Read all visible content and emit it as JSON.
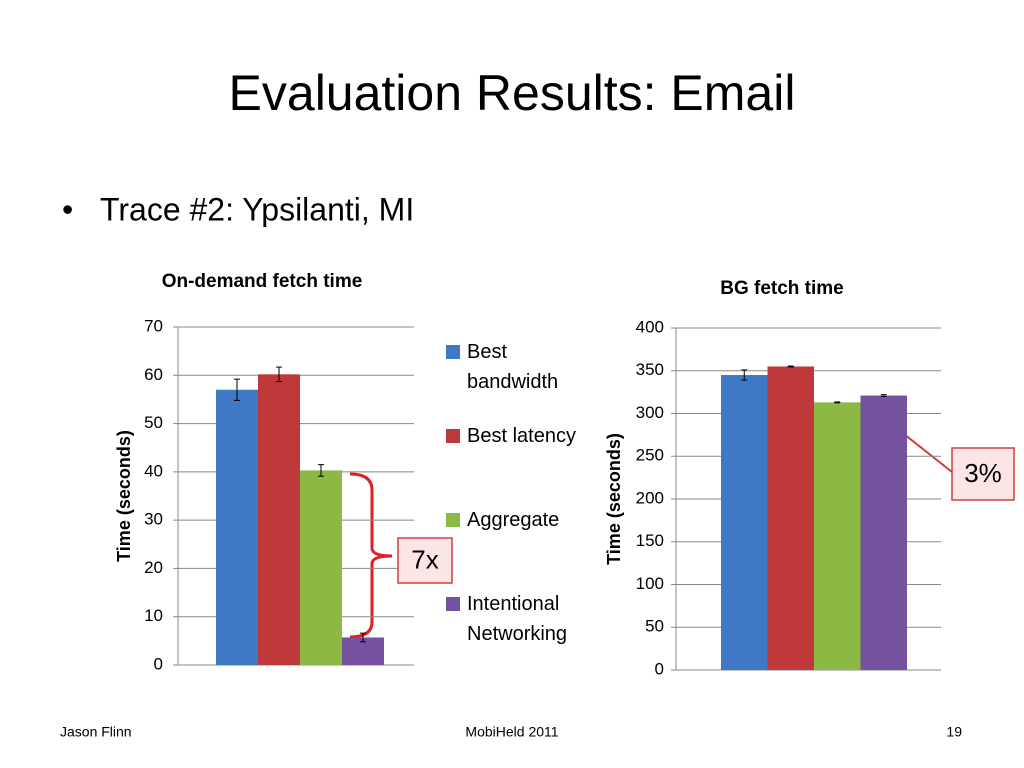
{
  "title": "Evaluation Results: Email",
  "bullet": "Trace #2: Ypsilanti, MI",
  "footer": {
    "left": "Jason Flinn",
    "center": "MobiHeld 2011",
    "right": "19"
  },
  "chart_data": [
    {
      "type": "bar",
      "title": "On-demand fetch time",
      "ylabel": "Time (seconds)",
      "categories": [
        null
      ],
      "series": [
        {
          "name": "Best bandwidth",
          "color": "#3f78c4",
          "values": [
            57
          ],
          "errors": [
            2.2
          ]
        },
        {
          "name": "Best latency",
          "color": "#c0393a",
          "values": [
            60.2
          ],
          "errors": [
            1.5
          ]
        },
        {
          "name": "Aggregate",
          "color": "#8cb844",
          "values": [
            40.3
          ],
          "errors": [
            1.2
          ]
        },
        {
          "name": "Intentional Networking",
          "color": "#7452a0",
          "values": [
            5.7
          ],
          "errors": [
            0.9
          ]
        }
      ],
      "ylim": [
        0,
        70
      ],
      "yticks": [
        0,
        10,
        20,
        30,
        40,
        50,
        60,
        70
      ],
      "grid": true,
      "legend": "right",
      "annotation": "7x"
    },
    {
      "type": "bar",
      "title": "BG fetch time",
      "ylabel": "Time (seconds)",
      "categories": [
        null
      ],
      "series": [
        {
          "color": "#3f78c4",
          "values": [
            345
          ],
          "errors": [
            6
          ]
        },
        {
          "color": "#c0393a",
          "values": [
            355
          ],
          "errors": [
            0.5
          ]
        },
        {
          "color": "#8cb844",
          "values": [
            313
          ],
          "errors": [
            0.5
          ]
        },
        {
          "color": "#7452a0",
          "values": [
            321
          ],
          "errors": [
            1
          ]
        }
      ],
      "ylim": [
        0,
        400
      ],
      "yticks": [
        0,
        50,
        100,
        150,
        200,
        250,
        300,
        350,
        400
      ],
      "grid": true,
      "annotation": "3%"
    }
  ]
}
